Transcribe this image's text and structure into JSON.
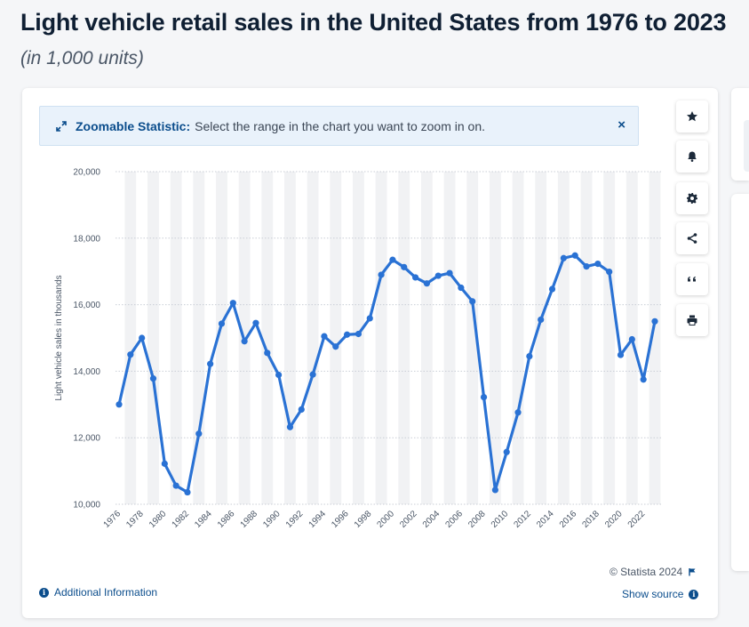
{
  "header": {
    "title": "Light vehicle retail sales in the United States from 1976 to 2023",
    "subtitle": "(in 1,000 units)"
  },
  "zoom_banner": {
    "label": "Zoomable Statistic:",
    "text": "Select the range in the chart you want to zoom in on.",
    "close_symbol": "×"
  },
  "toolbar": {
    "icons": [
      "star-icon",
      "bell-icon",
      "gear-icon",
      "share-icon",
      "quote-icon",
      "print-icon"
    ]
  },
  "footer": {
    "copyright": "© Statista 2024",
    "additional_info": "Additional Information",
    "show_source": "Show source"
  },
  "colors": {
    "line": "#2a72d4",
    "accent": "#0b4d8c",
    "band": "#f1f2f4",
    "grid": "#c9ced6"
  },
  "chart_data": {
    "type": "line",
    "title": "Light vehicle retail sales in the United States from 1976 to 2023",
    "ylabel": "Light vehicle sales in thousands",
    "xlabel": "",
    "ylim": [
      10000,
      20000
    ],
    "yticks": [
      10000,
      12000,
      14000,
      16000,
      18000,
      20000
    ],
    "ytick_labels": [
      "10,000",
      "12,000",
      "14,000",
      "16,000",
      "18,000",
      "20,000"
    ],
    "xtick_labels": [
      "1976",
      "1978",
      "1980",
      "1982",
      "1984",
      "1986",
      "1988",
      "1990",
      "1992",
      "1994",
      "1996",
      "1998",
      "2000",
      "2002",
      "2004",
      "2006",
      "2008",
      "2010",
      "2012",
      "2014",
      "2016",
      "2018",
      "2020",
      "2022"
    ],
    "x": [
      1976,
      1977,
      1978,
      1979,
      1980,
      1981,
      1982,
      1983,
      1984,
      1985,
      1986,
      1987,
      1988,
      1989,
      1990,
      1991,
      1992,
      1993,
      1994,
      1995,
      1996,
      1997,
      1998,
      1999,
      2000,
      2001,
      2002,
      2003,
      2004,
      2005,
      2006,
      2007,
      2008,
      2009,
      2010,
      2011,
      2012,
      2013,
      2014,
      2015,
      2016,
      2017,
      2018,
      2019,
      2020,
      2021,
      2022,
      2023
    ],
    "series": [
      {
        "name": "Light vehicle retail sales",
        "values": [
          13000,
          14500,
          15000,
          13780,
          11220,
          10560,
          10360,
          12120,
          14220,
          15430,
          16050,
          14900,
          15450,
          14550,
          13890,
          12320,
          12850,
          13900,
          15050,
          14740,
          15100,
          15120,
          15590,
          16900,
          17350,
          17130,
          16820,
          16640,
          16870,
          16950,
          16510,
          16100,
          13220,
          10430,
          11570,
          12760,
          14450,
          15550,
          16470,
          17400,
          17480,
          17150,
          17230,
          16990,
          14490,
          14960,
          13750,
          15500
        ]
      }
    ],
    "grid": true,
    "legend": "none"
  }
}
